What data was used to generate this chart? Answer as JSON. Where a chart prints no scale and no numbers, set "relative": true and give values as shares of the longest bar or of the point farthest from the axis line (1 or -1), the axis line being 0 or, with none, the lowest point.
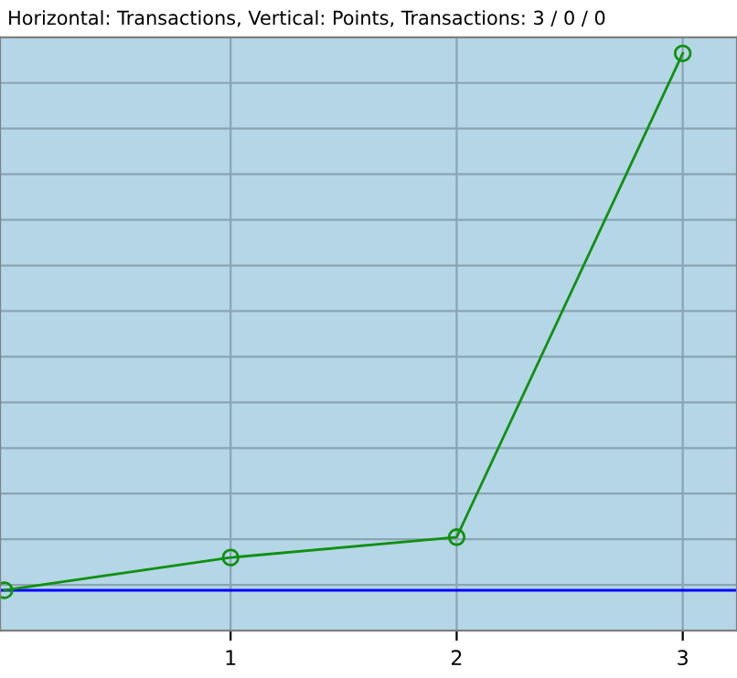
{
  "chart_data": {
    "type": "line",
    "title": "Horizontal: Transactions, Vertical: Points, Transactions: 3 / 0 / 0",
    "x": [
      0,
      1,
      2,
      3
    ],
    "series": [
      {
        "color": "#109010",
        "values": [
          0,
          0.061,
          0.099,
          1
        ]
      }
    ],
    "relative": true,
    "xlim": [
      -0.02,
      3.24
    ],
    "xticks": [
      1,
      2,
      3
    ],
    "tick_labels": "x",
    "marker": "circle",
    "line_style": "solid",
    "grid": true,
    "ref_lines": [
      {
        "axis": "y",
        "value": 0,
        "color": "#0000ff"
      }
    ]
  }
}
